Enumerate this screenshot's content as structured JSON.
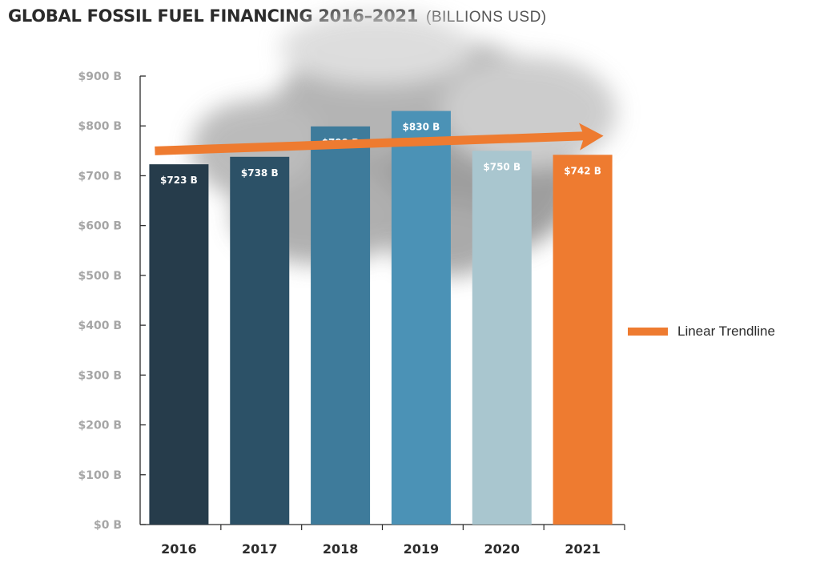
{
  "title": "GLOBAL FOSSIL FUEL FINANCING 2016–2021",
  "subtitle": "(BILLIONS USD)",
  "legend": {
    "label": "Linear Trendline",
    "color": "#ee7b30"
  },
  "chart_data": {
    "type": "bar",
    "title": "GLOBAL FOSSIL FUEL FINANCING 2016–2021",
    "subtitle": "(BILLIONS USD)",
    "categories": [
      "2016",
      "2017",
      "2018",
      "2019",
      "2020",
      "2021"
    ],
    "values": [
      723,
      738,
      799,
      830,
      750,
      742
    ],
    "data_labels": [
      "$723 B",
      "$738 B",
      "$799 B",
      "$830 B",
      "$750 B",
      "$742 B"
    ],
    "colors": [
      "#263c4b",
      "#2c5167",
      "#3e7b9b",
      "#4b92b6",
      "#a9c6cf",
      "#ee7b30"
    ],
    "ylim": [
      0,
      900
    ],
    "yticks": [
      0,
      100,
      200,
      300,
      400,
      500,
      600,
      700,
      800,
      900
    ],
    "ytick_labels": [
      "$0 B",
      "$100 B",
      "$200 B",
      "$300 B",
      "$400 B",
      "$500 B",
      "$600 B",
      "$700 B",
      "$800 B",
      "$900 B"
    ],
    "grid": false,
    "legend_position": "right",
    "trendline": {
      "name": "Linear Trendline",
      "start_value": 750,
      "end_value": 780,
      "color": "#ee7b30"
    }
  }
}
